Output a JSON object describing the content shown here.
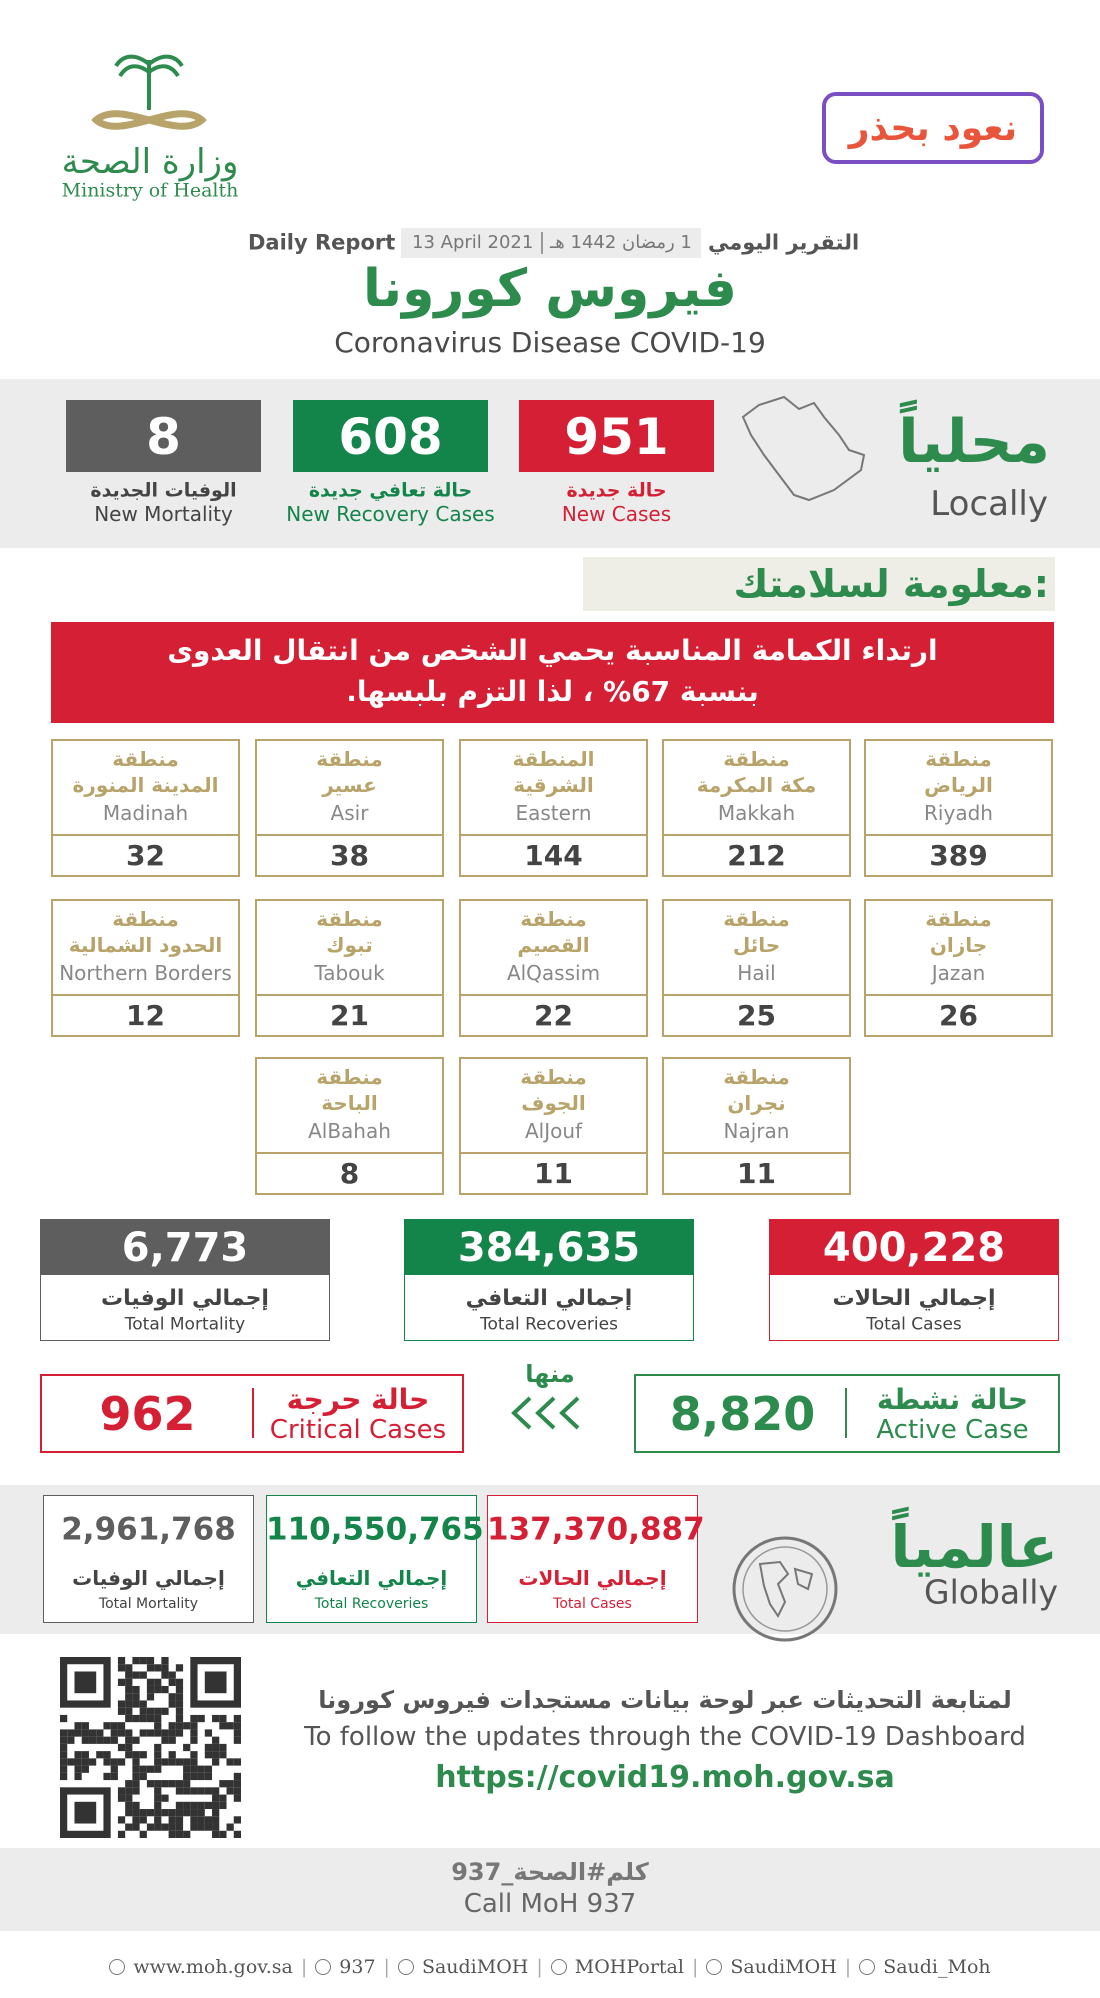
{
  "header": {
    "ministry_ar": "وزارة الصحة",
    "ministry_en": "Ministry of Health",
    "campaign": "نعود بحذر",
    "report_en": "Daily Report",
    "date_en": "13 April  2021",
    "date_hijri": "1 رمضان 1442 هـ",
    "report_ar": "التقرير اليومي",
    "title_ar": "فيروس كورونا",
    "title_en": "Coronavirus Disease COVID-19"
  },
  "local": {
    "label_ar": "محلياً",
    "label_en": "Locally",
    "stats": [
      {
        "value": "951",
        "label_ar": "حالة جديدة",
        "label_en": "New Cases"
      },
      {
        "value": "608",
        "label_ar": "حالة تعافي جديدة",
        "label_en": "New Recovery Cases"
      },
      {
        "value": "8",
        "label_ar": "الوفيات الجديدة",
        "label_en": "New Mortality"
      }
    ]
  },
  "safety": {
    "title": "معلومة لسلامتك:",
    "lines": [
      "ارتداء الكمامة المناسبة يحمي الشخص من انتقال العدوى",
      "بنسبة 67% ، لذا التزم بلبسها."
    ]
  },
  "regions": [
    {
      "prefix": "منطقة",
      "name_ar": "الرياض",
      "name_en": "Riyadh",
      "value": "389"
    },
    {
      "prefix": "منطقة",
      "name_ar": "مكة المكرمة",
      "name_en": "Makkah",
      "value": "212"
    },
    {
      "prefix": "المنطقة",
      "name_ar": "الشرقية",
      "name_en": "Eastern",
      "value": "144"
    },
    {
      "prefix": "منطقة",
      "name_ar": "عسير",
      "name_en": "Asir",
      "value": "38"
    },
    {
      "prefix": "منطقة",
      "name_ar": "المدينة المنورة",
      "name_en": "Madinah",
      "value": "32"
    },
    {
      "prefix": "منطقة",
      "name_ar": "جازان",
      "name_en": "Jazan",
      "value": "26"
    },
    {
      "prefix": "منطقة",
      "name_ar": "حائل",
      "name_en": "Hail",
      "value": "25"
    },
    {
      "prefix": "منطقة",
      "name_ar": "القصيم",
      "name_en": "AlQassim",
      "value": "22"
    },
    {
      "prefix": "منطقة",
      "name_ar": "تبوك",
      "name_en": "Tabouk",
      "value": "21"
    },
    {
      "prefix": "منطقة",
      "name_ar": "الحدود الشمالية",
      "name_en": "Northern Borders",
      "value": "12"
    },
    {
      "prefix": "منطقة",
      "name_ar": "نجران",
      "name_en": "Najran",
      "value": "11"
    },
    {
      "prefix": "منطقة",
      "name_ar": "الجوف",
      "name_en": "AlJouf",
      "value": "11"
    },
    {
      "prefix": "منطقة",
      "name_ar": "الباحة",
      "name_en": "AlBahah",
      "value": "8"
    }
  ],
  "totals": [
    {
      "value": "400,228",
      "label_ar": "إجمالي الحالات",
      "label_en": "Total Cases"
    },
    {
      "value": "384,635",
      "label_ar": "إجمالي التعافي",
      "label_en": "Total Recoveries"
    },
    {
      "value": "6,773",
      "label_ar": "إجمالي الوفيات",
      "label_en": "Total Mortality"
    }
  ],
  "active": {
    "label_ar": "حالة نشطة",
    "label_en": "Active Case",
    "value": "8,820"
  },
  "of_which": "منها",
  "critical": {
    "label_ar": "حالة حرجة",
    "label_en": "Critical Cases",
    "value": "962"
  },
  "global": {
    "label_ar": "عالمياً",
    "label_en": "Globally",
    "stats": [
      {
        "value": "137,370,887",
        "label_ar": "إجمالي الحالات",
        "label_en": "Total Cases"
      },
      {
        "value": "110,550,765",
        "label_ar": "إجمالي التعافي",
        "label_en": "Total Recoveries"
      },
      {
        "value": "2,961,768",
        "label_ar": "إجمالي الوفيات",
        "label_en": "Total Mortality"
      }
    ]
  },
  "dashboard": {
    "line_ar": "لمتابعة التحديثات عبر لوحة بيانات مستجدات فيروس كورونا",
    "line_en": "To follow the updates through the COVID-19 Dashboard",
    "url": "https://covid19.moh.gov.sa"
  },
  "call": {
    "ar": "كلم#الصحة_937",
    "en": "Call MoH 937"
  },
  "footer": [
    "www.moh.gov.sa",
    "937",
    "SaudiMOH",
    "MOHPortal",
    "SaudiMOH",
    "Saudi_Moh"
  ]
}
